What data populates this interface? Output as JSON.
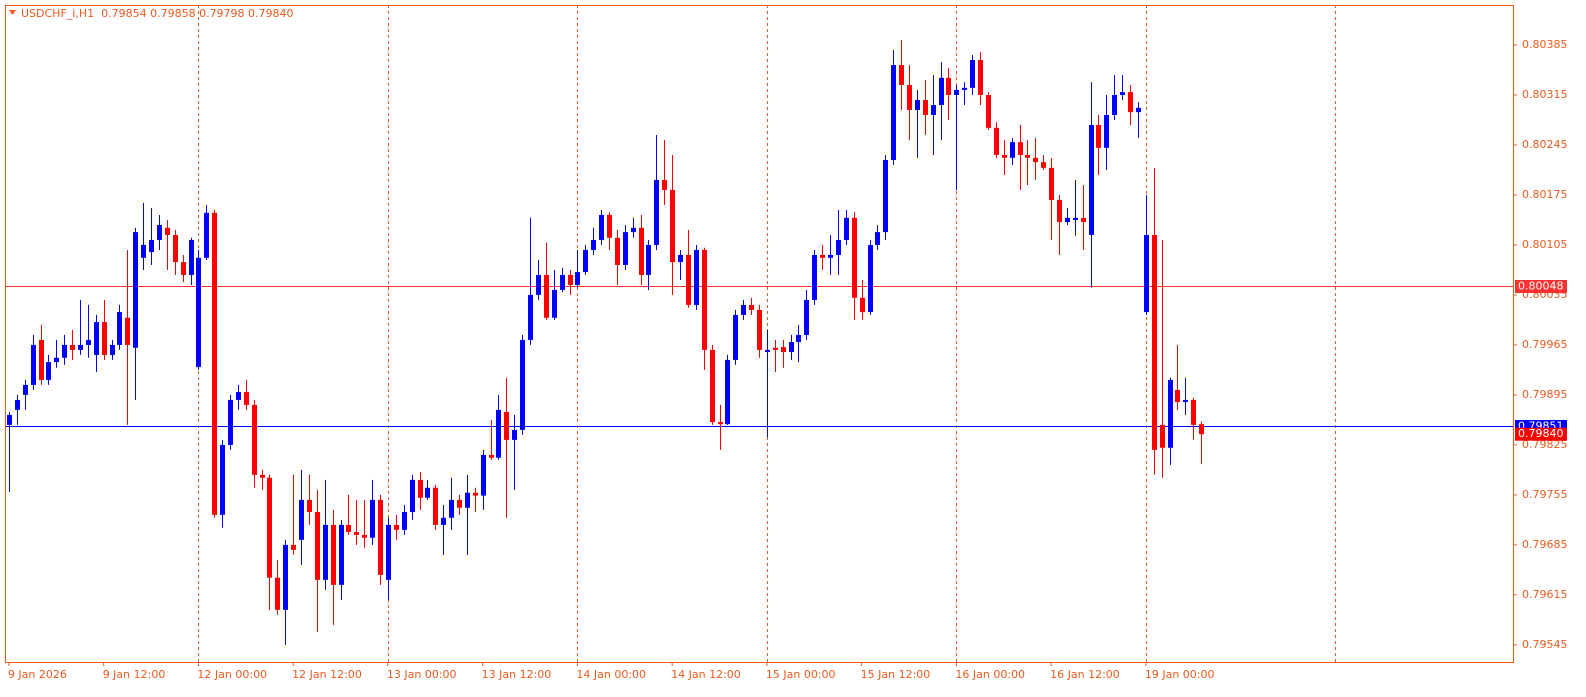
{
  "chart_data": {
    "type": "candlestick",
    "title": "USDCHF_i,H1  0.79854 0.79858 0.79798 0.79840",
    "bull_color": "#0000ff",
    "bear_color": "#ff0000",
    "axis_color": "#f05a1e",
    "ylim": [
      0.79521,
      0.80441
    ],
    "yticks": [
      0.80385,
      0.80315,
      0.80245,
      0.80175,
      0.80105,
      0.80035,
      0.79965,
      0.79895,
      0.79825,
      0.79755,
      0.79685,
      0.79615,
      0.79545
    ],
    "xlim": [
      -0.5,
      190.5
    ],
    "xticks": [
      {
        "value": 0,
        "label": "9 Jan 2026"
      },
      {
        "value": 12,
        "label": "9 Jan 12:00"
      },
      {
        "value": 24,
        "label": "12 Jan 00:00"
      },
      {
        "value": 36,
        "label": "12 Jan 12:00"
      },
      {
        "value": 48,
        "label": "13 Jan 00:00"
      },
      {
        "value": 60,
        "label": "13 Jan 12:00"
      },
      {
        "value": 72,
        "label": "14 Jan 00:00"
      },
      {
        "value": 84,
        "label": "14 Jan 12:00"
      },
      {
        "value": 96,
        "label": "15 Jan 00:00"
      },
      {
        "value": 108,
        "label": "15 Jan 12:00"
      },
      {
        "value": 120,
        "label": "16 Jan 00:00"
      },
      {
        "value": 132,
        "label": "16 Jan 12:00"
      },
      {
        "value": 144,
        "label": "19 Jan 00:00"
      }
    ],
    "xgrid": [
      24,
      48,
      72,
      96,
      120,
      144,
      168
    ],
    "hlines": [
      {
        "value": 0.80048,
        "color": "#ff3030"
      },
      {
        "value": 0.79851,
        "color": "#0000ff"
      }
    ],
    "bid": {
      "value": 0.7984,
      "label": "0.79840"
    },
    "ohlc": [
      [
        0.79853,
        0.79871,
        0.79759,
        0.79867
      ],
      [
        0.79874,
        0.79895,
        0.79853,
        0.79888
      ],
      [
        0.79895,
        0.79916,
        0.79874,
        0.79909
      ],
      [
        0.79909,
        0.79979,
        0.79902,
        0.79965
      ],
      [
        0.79972,
        0.79993,
        0.79909,
        0.79916
      ],
      [
        0.79916,
        0.79951,
        0.79909,
        0.79941
      ],
      [
        0.79941,
        0.79972,
        0.79933,
        0.79947
      ],
      [
        0.79947,
        0.79979,
        0.79937,
        0.79965
      ],
      [
        0.79965,
        0.79986,
        0.79944,
        0.79958
      ],
      [
        0.79958,
        0.80028,
        0.79951,
        0.79965
      ],
      [
        0.79965,
        0.80021,
        0.79947,
        0.79972
      ],
      [
        0.79951,
        0.80007,
        0.79927,
        0.79997
      ],
      [
        0.79997,
        0.80028,
        0.79944,
        0.79951
      ],
      [
        0.79951,
        0.79972,
        0.79944,
        0.79965
      ],
      [
        0.79965,
        0.80021,
        0.79958,
        0.80011
      ],
      [
        0.80003,
        0.80098,
        0.79853,
        0.79965
      ],
      [
        0.79961,
        0.80129,
        0.79888,
        0.80123
      ],
      [
        0.80087,
        0.80164,
        0.8007,
        0.80105
      ],
      [
        0.80095,
        0.80157,
        0.80077,
        0.80112
      ],
      [
        0.80112,
        0.80147,
        0.80098,
        0.80133
      ],
      [
        0.80129,
        0.8014,
        0.8007,
        0.80119
      ],
      [
        0.80119,
        0.80126,
        0.80063,
        0.80081
      ],
      [
        0.80081,
        0.80091,
        0.80053,
        0.80063
      ],
      [
        0.80063,
        0.80115,
        0.80049,
        0.80112
      ],
      [
        0.79934,
        0.80098,
        0.7993,
        0.80087
      ],
      [
        0.80087,
        0.80161,
        0.80084,
        0.8015
      ],
      [
        0.8015,
        0.80154,
        0.79723,
        0.79727
      ],
      [
        0.79727,
        0.79832,
        0.79709,
        0.79825
      ],
      [
        0.79825,
        0.79895,
        0.79818,
        0.79888
      ],
      [
        0.79888,
        0.79909,
        0.79874,
        0.79899
      ],
      [
        0.79899,
        0.79916,
        0.79874,
        0.79881
      ],
      [
        0.79881,
        0.79888,
        0.79765,
        0.79783
      ],
      [
        0.79783,
        0.7979,
        0.79762,
        0.79779
      ],
      [
        0.79779,
        0.79783,
        0.79594,
        0.79639
      ],
      [
        0.79639,
        0.79664,
        0.79587,
        0.79594
      ],
      [
        0.79594,
        0.79692,
        0.79545,
        0.79685
      ],
      [
        0.79685,
        0.79783,
        0.79671,
        0.79678
      ],
      [
        0.79692,
        0.7979,
        0.79657,
        0.79748
      ],
      [
        0.79748,
        0.79783,
        0.79713,
        0.79731
      ],
      [
        0.79731,
        0.79762,
        0.79563,
        0.79636
      ],
      [
        0.79636,
        0.79776,
        0.79622,
        0.79713
      ],
      [
        0.79713,
        0.79734,
        0.79573,
        0.79629
      ],
      [
        0.79629,
        0.7972,
        0.79608,
        0.79713
      ],
      [
        0.79713,
        0.79755,
        0.79699,
        0.79703
      ],
      [
        0.79703,
        0.79748,
        0.79685,
        0.79699
      ],
      [
        0.79699,
        0.79748,
        0.79681,
        0.79695
      ],
      [
        0.79695,
        0.79776,
        0.79685,
        0.79748
      ],
      [
        0.79748,
        0.79755,
        0.79629,
        0.79643
      ],
      [
        0.79636,
        0.79723,
        0.79608,
        0.79713
      ],
      [
        0.79713,
        0.79727,
        0.79692,
        0.79706
      ],
      [
        0.79706,
        0.79741,
        0.79699,
        0.79731
      ],
      [
        0.79731,
        0.79783,
        0.7972,
        0.79776
      ],
      [
        0.79776,
        0.79787,
        0.79734,
        0.79751
      ],
      [
        0.79751,
        0.79776,
        0.79748,
        0.79765
      ],
      [
        0.79765,
        0.79769,
        0.79706,
        0.79713
      ],
      [
        0.79713,
        0.79741,
        0.79671,
        0.79723
      ],
      [
        0.79723,
        0.79779,
        0.79706,
        0.79748
      ],
      [
        0.79748,
        0.79755,
        0.79727,
        0.79737
      ],
      [
        0.79737,
        0.79783,
        0.79671,
        0.79758
      ],
      [
        0.79758,
        0.79765,
        0.79731,
        0.79754
      ],
      [
        0.79754,
        0.79818,
        0.79734,
        0.79811
      ],
      [
        0.79811,
        0.7986,
        0.79804,
        0.79807
      ],
      [
        0.79807,
        0.79895,
        0.79804,
        0.79874
      ],
      [
        0.79871,
        0.79919,
        0.79723,
        0.79832
      ],
      [
        0.79832,
        0.79867,
        0.79762,
        0.79846
      ],
      [
        0.79846,
        0.79979,
        0.79839,
        0.79972
      ],
      [
        0.79972,
        0.80143,
        0.79965,
        0.80035
      ],
      [
        0.80035,
        0.80084,
        0.80028,
        0.80063
      ],
      [
        0.80063,
        0.80108,
        0.8,
        0.80003
      ],
      [
        0.80003,
        0.8007,
        0.8,
        0.80042
      ],
      [
        0.80042,
        0.80073,
        0.80039,
        0.80063
      ],
      [
        0.80063,
        0.8007,
        0.80035,
        0.80049
      ],
      [
        0.80049,
        0.80098,
        0.80045,
        0.80067
      ],
      [
        0.80067,
        0.80105,
        0.80063,
        0.80098
      ],
      [
        0.80098,
        0.80129,
        0.80091,
        0.80112
      ],
      [
        0.80112,
        0.80154,
        0.80105,
        0.80147
      ],
      [
        0.80147,
        0.80151,
        0.80098,
        0.80115
      ],
      [
        0.80115,
        0.80126,
        0.80049,
        0.80077
      ],
      [
        0.80077,
        0.80133,
        0.8007,
        0.80123
      ],
      [
        0.80123,
        0.80143,
        0.80115,
        0.80129
      ],
      [
        0.80129,
        0.80147,
        0.80049,
        0.80063
      ],
      [
        0.80063,
        0.80112,
        0.80042,
        0.80105
      ],
      [
        0.80105,
        0.80259,
        0.80098,
        0.80196
      ],
      [
        0.80196,
        0.80252,
        0.80161,
        0.80182
      ],
      [
        0.80182,
        0.80231,
        0.80035,
        0.80081
      ],
      [
        0.80081,
        0.80098,
        0.80056,
        0.80091
      ],
      [
        0.80091,
        0.80126,
        0.80017,
        0.80021
      ],
      [
        0.80021,
        0.80105,
        0.80014,
        0.80098
      ],
      [
        0.80098,
        0.80101,
        0.7993,
        0.79958
      ],
      [
        0.79958,
        0.79965,
        0.79853,
        0.79857
      ],
      [
        0.79857,
        0.79881,
        0.79818,
        0.79854
      ],
      [
        0.79854,
        0.79951,
        0.79853,
        0.79944
      ],
      [
        0.79944,
        0.80014,
        0.79937,
        0.80007
      ],
      [
        0.80007,
        0.80028,
        0.8,
        0.80021
      ],
      [
        0.80021,
        0.80031,
        0.80007,
        0.80014
      ],
      [
        0.80014,
        0.80021,
        0.79947,
        0.79958
      ],
      [
        0.79955,
        0.79986,
        0.79836,
        0.79958
      ],
      [
        0.79961,
        0.79972,
        0.79927,
        0.79958
      ],
      [
        0.79962,
        0.79972,
        0.79933,
        0.79955
      ],
      [
        0.79955,
        0.79979,
        0.79944,
        0.79969
      ],
      [
        0.79969,
        0.79993,
        0.79941,
        0.79979
      ],
      [
        0.79979,
        0.80042,
        0.79972,
        0.80028
      ],
      [
        0.80028,
        0.80098,
        0.80021,
        0.80091
      ],
      [
        0.80091,
        0.80105,
        0.8007,
        0.80087
      ],
      [
        0.80087,
        0.80119,
        0.80063,
        0.80091
      ],
      [
        0.80091,
        0.80154,
        0.80063,
        0.80112
      ],
      [
        0.80112,
        0.80154,
        0.80105,
        0.80143
      ],
      [
        0.80143,
        0.80151,
        0.8,
        0.80031
      ],
      [
        0.80031,
        0.80056,
        0.8,
        0.80011
      ],
      [
        0.80011,
        0.80112,
        0.80007,
        0.80105
      ],
      [
        0.80105,
        0.80133,
        0.80098,
        0.80123
      ],
      [
        0.80123,
        0.80231,
        0.80112,
        0.80224
      ],
      [
        0.80224,
        0.80378,
        0.80217,
        0.80357
      ],
      [
        0.80357,
        0.80392,
        0.80294,
        0.80329
      ],
      [
        0.80329,
        0.80357,
        0.80252,
        0.80294
      ],
      [
        0.80294,
        0.80322,
        0.80227,
        0.80308
      ],
      [
        0.80308,
        0.80336,
        0.80259,
        0.80287
      ],
      [
        0.80287,
        0.80343,
        0.80231,
        0.80301
      ],
      [
        0.80301,
        0.80361,
        0.80252,
        0.80339
      ],
      [
        0.80339,
        0.80353,
        0.8028,
        0.80315
      ],
      [
        0.80315,
        0.80329,
        0.80182,
        0.80322
      ],
      [
        0.80322,
        0.80333,
        0.80301,
        0.80325
      ],
      [
        0.80325,
        0.80371,
        0.80315,
        0.80364
      ],
      [
        0.80364,
        0.80375,
        0.80301,
        0.80315
      ],
      [
        0.80315,
        0.80319,
        0.80266,
        0.80269
      ],
      [
        0.80269,
        0.80277,
        0.80227,
        0.80231
      ],
      [
        0.80231,
        0.80252,
        0.80203,
        0.80227
      ],
      [
        0.80227,
        0.80255,
        0.80217,
        0.80249
      ],
      [
        0.80249,
        0.80273,
        0.80182,
        0.80231
      ],
      [
        0.80231,
        0.80252,
        0.80189,
        0.80227
      ],
      [
        0.80227,
        0.80255,
        0.80196,
        0.80221
      ],
      [
        0.80221,
        0.80231,
        0.8021,
        0.80213
      ],
      [
        0.80213,
        0.80227,
        0.80112,
        0.80168
      ],
      [
        0.80168,
        0.80175,
        0.80091,
        0.80137
      ],
      [
        0.80137,
        0.80157,
        0.80133,
        0.80143
      ],
      [
        0.8014,
        0.80196,
        0.80118,
        0.80143
      ],
      [
        0.80143,
        0.80189,
        0.80098,
        0.80137
      ],
      [
        0.80119,
        0.80333,
        0.80045,
        0.80273
      ],
      [
        0.80273,
        0.80287,
        0.80203,
        0.80241
      ],
      [
        0.80241,
        0.80315,
        0.8021,
        0.80287
      ],
      [
        0.80287,
        0.80343,
        0.8028,
        0.80315
      ],
      [
        0.80315,
        0.80343,
        0.80308,
        0.80319
      ],
      [
        0.80319,
        0.80329,
        0.80273,
        0.80291
      ],
      [
        0.80291,
        0.80305,
        0.80255,
        0.80297
      ],
      [
        0.80011,
        0.80175,
        0.80007,
        0.80119
      ],
      [
        0.80119,
        0.80213,
        0.79783,
        0.79818
      ],
      [
        0.79853,
        0.80112,
        0.79779,
        0.79821
      ],
      [
        0.79821,
        0.79919,
        0.79797,
        0.79916
      ],
      [
        0.79902,
        0.79965,
        0.79874,
        0.79885
      ],
      [
        0.79885,
        0.79919,
        0.79867,
        0.79888
      ],
      [
        0.79888,
        0.79891,
        0.79832,
        0.79853
      ],
      [
        0.79854,
        0.79858,
        0.79798,
        0.7984
      ]
    ]
  }
}
